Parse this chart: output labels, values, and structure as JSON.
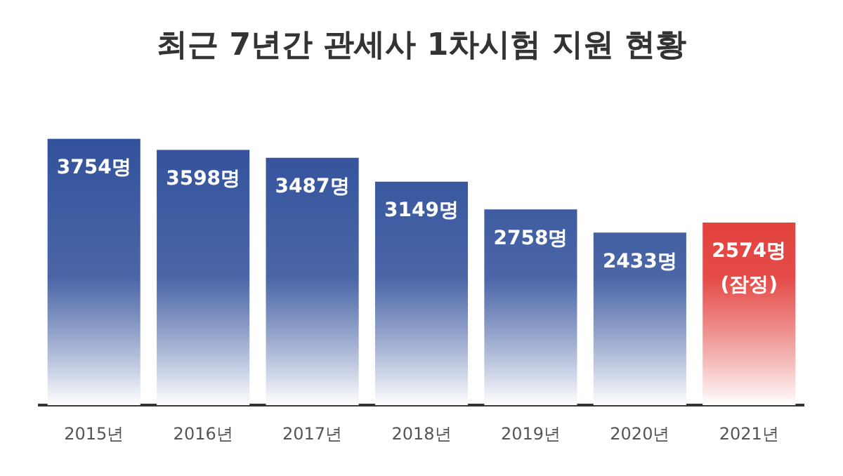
{
  "chart_data": {
    "type": "bar",
    "title": "최근 7년간 관세사 1차시험 지원 현황",
    "categories": [
      "2015년",
      "2016년",
      "2017년",
      "2018년",
      "2019년",
      "2020년",
      "2021년"
    ],
    "values": [
      3754,
      3598,
      3487,
      3149,
      2758,
      2433,
      2574
    ],
    "colors": [
      "#2f4f9a",
      "#2f4f9a",
      "#2f4f9a",
      "#2f4f9a",
      "#2f4f9a",
      "#2f4f9a",
      "#e0302c"
    ],
    "value_labels": [
      "3754명",
      "3598명",
      "3487명",
      "3149명",
      "2758명",
      "2433명",
      "2574명\n(잠정)"
    ],
    "grid": false,
    "legend": false
  }
}
